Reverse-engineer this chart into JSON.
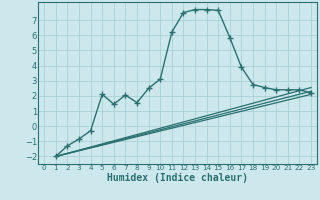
{
  "title": "",
  "xlabel": "Humidex (Indice chaleur)",
  "bg_color": "#cce8ec",
  "grid_color": "#aacfd5",
  "line_color": "#2a7070",
  "xlim": [
    -0.5,
    23.5
  ],
  "ylim": [
    -2.5,
    8.2
  ],
  "yticks": [
    -2,
    -1,
    0,
    1,
    2,
    3,
    4,
    5,
    6,
    7
  ],
  "xticks": [
    0,
    1,
    2,
    3,
    4,
    5,
    6,
    7,
    8,
    9,
    10,
    11,
    12,
    13,
    14,
    15,
    16,
    17,
    18,
    19,
    20,
    21,
    22,
    23
  ],
  "main": {
    "x": [
      1,
      2,
      3,
      4,
      5,
      6,
      7,
      8,
      9,
      10,
      11,
      12,
      13,
      14,
      15,
      16,
      17,
      18,
      19,
      20,
      21,
      22,
      23
    ],
    "y": [
      -2,
      -1.3,
      -0.85,
      -0.3,
      2.1,
      1.45,
      2.05,
      1.55,
      2.5,
      3.1,
      6.2,
      7.5,
      7.7,
      7.7,
      7.65,
      5.85,
      3.9,
      2.75,
      2.55,
      2.4,
      2.4,
      2.4,
      2.2
    ]
  },
  "ref_lines": [
    {
      "x": [
        1,
        23
      ],
      "y": [
        -2,
        2.55
      ]
    },
    {
      "x": [
        1,
        23
      ],
      "y": [
        -2,
        2.3
      ]
    },
    {
      "x": [
        1,
        23
      ],
      "y": [
        -2,
        2.1
      ]
    }
  ]
}
